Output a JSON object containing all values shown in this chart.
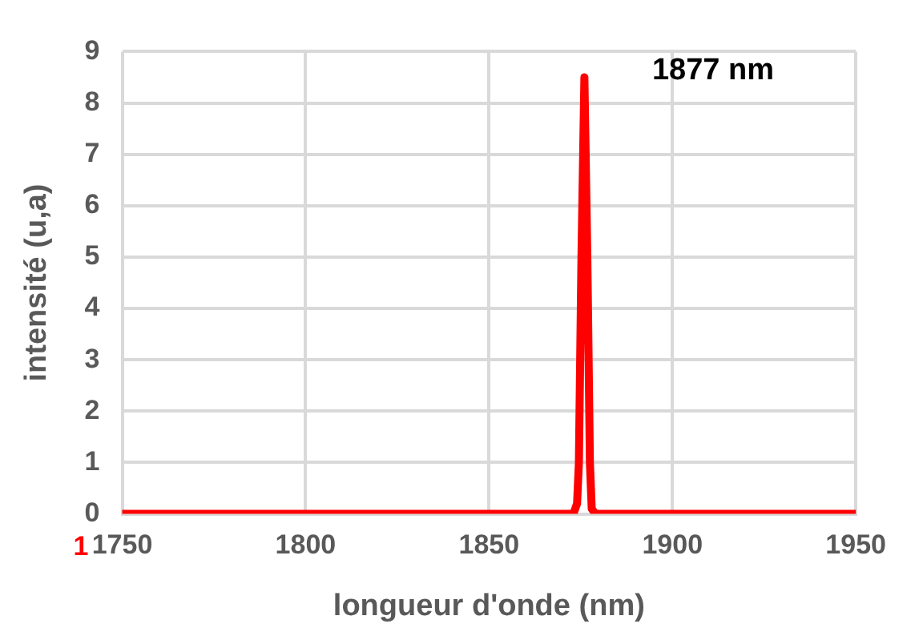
{
  "chart_data": {
    "type": "line",
    "xlabel": "longueur d'onde (nm)",
    "ylabel": "intensité (u,a)",
    "x": [
      1750,
      1873,
      1874,
      1874.5,
      1875.2,
      1876,
      1876.8,
      1877.5,
      1878,
      1879,
      1950
    ],
    "series": [
      {
        "color": "#ff0000",
        "values": [
          0,
          0,
          0.2,
          1,
          5,
          8.5,
          5,
          1,
          0.1,
          0,
          0
        ]
      }
    ],
    "xlim": [
      1750,
      1950
    ],
    "xticks": [
      1750,
      1800,
      1850,
      1900,
      1950
    ],
    "ylim": [
      0,
      9
    ],
    "yticks": [
      0,
      1,
      2,
      3,
      4,
      5,
      6,
      7,
      8,
      9
    ],
    "grid": true,
    "legend": false,
    "marker": "none",
    "line_style": "solid",
    "annotations": [
      {
        "text": "1877 nm",
        "x": 1877,
        "y": 8.5
      },
      "1"
    ]
  }
}
